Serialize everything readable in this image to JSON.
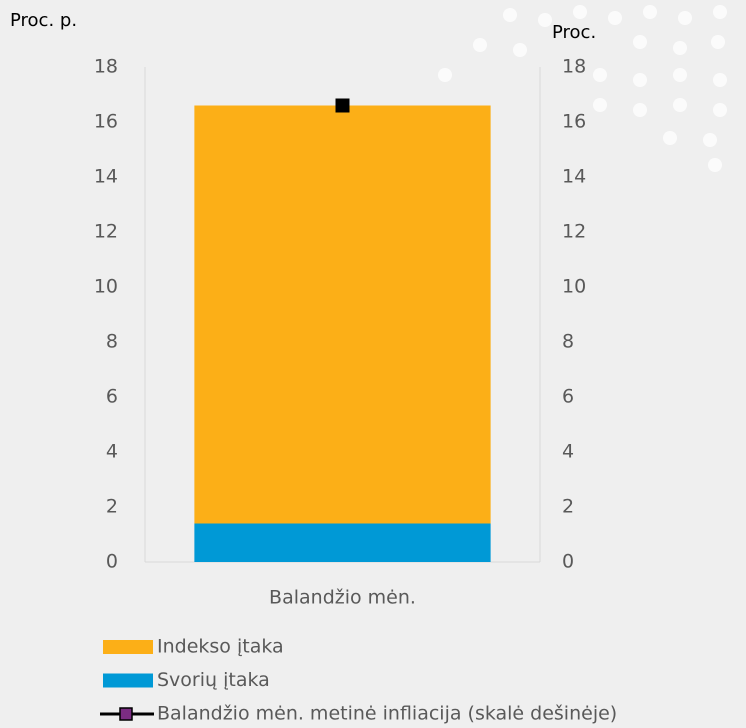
{
  "chart_data": {
    "type": "bar",
    "y_axis_label": "Proc. p.",
    "y2_axis_label": "Proc.",
    "categories": [
      "Balandžio mėn."
    ],
    "stacked": true,
    "series": [
      {
        "name": "Svorių įtaka",
        "type": "bar",
        "color": "#0099d6",
        "values": [
          1.4
        ]
      },
      {
        "name": "Indekso įtaka",
        "type": "bar",
        "color": "#fcaf17",
        "values": [
          15.2
        ]
      },
      {
        "name": "Balandžio mėn. metinė infliacija (skalė dešinėje)",
        "type": "line",
        "axis": "y2",
        "color": "#000000",
        "legend_marker_color": "#7b2c83",
        "values": [
          16.6
        ]
      }
    ],
    "ylim": [
      0,
      18
    ],
    "yticks": [
      0,
      2,
      4,
      6,
      8,
      10,
      12,
      14,
      16,
      18
    ],
    "y2lim": [
      0,
      18
    ],
    "y2ticks": [
      0,
      2,
      4,
      6,
      8,
      10,
      12,
      14,
      16,
      18
    ],
    "legend_order": [
      1,
      0,
      2
    ]
  }
}
